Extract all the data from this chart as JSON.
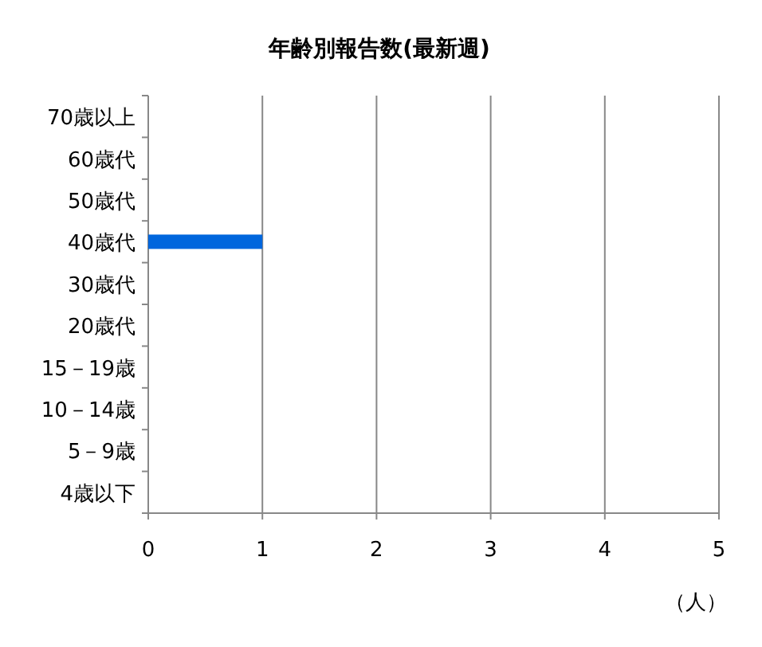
{
  "chart_data": {
    "type": "bar",
    "orientation": "horizontal",
    "title": "年齢別報告数(最新週)",
    "xlabel": "（人）",
    "categories": [
      "70歳以上",
      "60歳代",
      "50歳代",
      "40歳代",
      "30歳代",
      "20歳代",
      "15－19歳",
      "10－14歳",
      "5－9歳",
      "4歳以下"
    ],
    "values": [
      0,
      0,
      0,
      1,
      0,
      0,
      0,
      0,
      0,
      0
    ],
    "color": "#0066dd",
    "xlim": [
      0,
      5
    ],
    "xticks": [
      0,
      1,
      2,
      3,
      4,
      5
    ],
    "grid": "x"
  }
}
